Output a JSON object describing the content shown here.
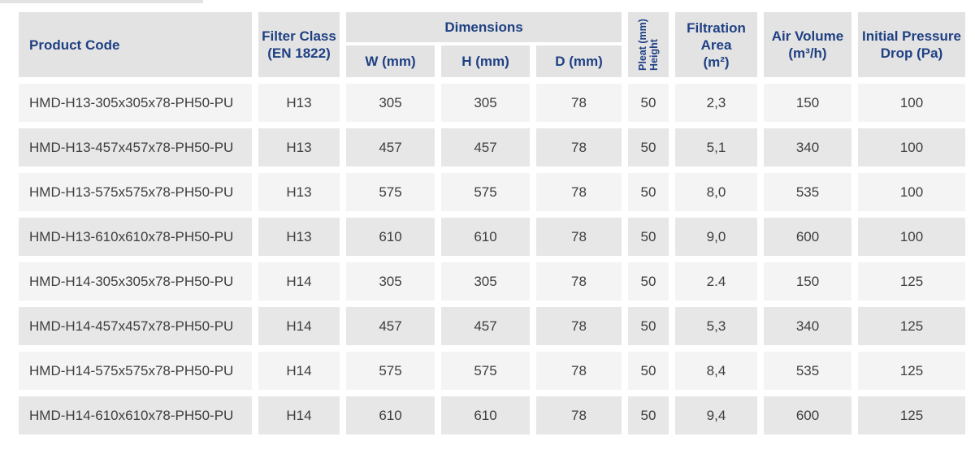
{
  "colors": {
    "header_text": "#1e4083",
    "cell_text": "#3e3e3e",
    "header_bg": "#e4e3e3",
    "row_odd": "#f4f4f4",
    "row_even": "#e8e7e7",
    "page_bg": "#ffffff"
  },
  "table": {
    "headers": {
      "product_code": "Product Code",
      "filter_class_line1": "Filter Class",
      "filter_class_line2": "(EN 1822)",
      "dimensions": "Dimensions",
      "w": "W (mm)",
      "h": "H (mm)",
      "d": "D (mm)",
      "pleat_line1": "Pleat (mm)",
      "pleat_line2": "Height",
      "filtration_area_line1": "Filtration",
      "filtration_area_line2": "Area",
      "filtration_area_line3": "(m²)",
      "air_volume_line1": "Air Volume",
      "air_volume_line2": "(m³/h)",
      "pressure_line1": "Initial Pressure",
      "pressure_line2": "Drop (Pa)"
    },
    "rows": [
      {
        "code": "HMD-H13-305x305x78-PH50-PU",
        "filter_class": "H13",
        "w": "305",
        "h": "305",
        "d": "78",
        "pleat": "50",
        "area": "2,3",
        "volume": "150",
        "pressure": "100"
      },
      {
        "code": "HMD-H13-457x457x78-PH50-PU",
        "filter_class": "H13",
        "w": "457",
        "h": "457",
        "d": "78",
        "pleat": "50",
        "area": "5,1",
        "volume": "340",
        "pressure": "100"
      },
      {
        "code": "HMD-H13-575x575x78-PH50-PU",
        "filter_class": "H13",
        "w": "575",
        "h": "575",
        "d": "78",
        "pleat": "50",
        "area": "8,0",
        "volume": "535",
        "pressure": "100"
      },
      {
        "code": "HMD-H13-610x610x78-PH50-PU",
        "filter_class": "H13",
        "w": "610",
        "h": "610",
        "d": "78",
        "pleat": "50",
        "area": "9,0",
        "volume": "600",
        "pressure": "100"
      },
      {
        "code": "HMD-H14-305x305x78-PH50-PU",
        "filter_class": "H14",
        "w": "305",
        "h": "305",
        "d": "78",
        "pleat": "50",
        "area": "2.4",
        "volume": "150",
        "pressure": "125"
      },
      {
        "code": "HMD-H14-457x457x78-PH50-PU",
        "filter_class": "H14",
        "w": "457",
        "h": "457",
        "d": "78",
        "pleat": "50",
        "area": "5,3",
        "volume": "340",
        "pressure": "125"
      },
      {
        "code": "HMD-H14-575x575x78-PH50-PU",
        "filter_class": "H14",
        "w": "575",
        "h": "575",
        "d": "78",
        "pleat": "50",
        "area": "8,4",
        "volume": "535",
        "pressure": "125"
      },
      {
        "code": "HMD-H14-610x610x78-PH50-PU",
        "filter_class": "H14",
        "w": "610",
        "h": "610",
        "d": "78",
        "pleat": "50",
        "area": "9,4",
        "volume": "600",
        "pressure": "125"
      }
    ]
  }
}
